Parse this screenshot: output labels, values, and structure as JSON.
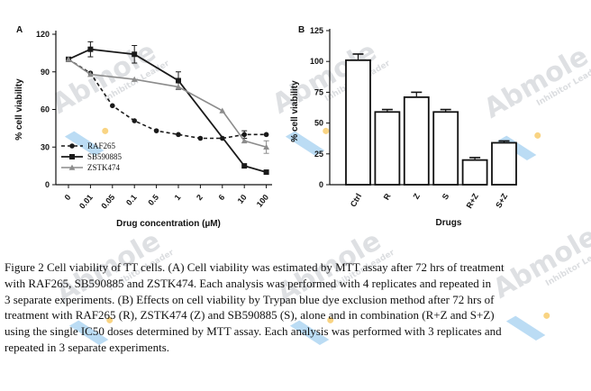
{
  "watermark": {
    "brand": "Abmole",
    "tagline": "Inhibitor Leader"
  },
  "chart_data": [
    {
      "panel_label": "A",
      "type": "line",
      "xlabel": "Drug concentration (µM)",
      "ylabel": "% cell viability",
      "categories": [
        "0",
        "0.01",
        "0.05",
        "0.1",
        "0.5",
        "1",
        "2",
        "6",
        "10",
        "100"
      ],
      "ylim": [
        0,
        120
      ],
      "yticks": [
        0,
        30,
        60,
        90,
        120
      ],
      "series": [
        {
          "name": "RAF265",
          "style": "dashed",
          "marker": "circle",
          "points": [
            [
              0,
              100
            ],
            [
              1,
              89
            ],
            [
              2,
              63
            ],
            [
              3,
              51
            ],
            [
              4,
              43
            ],
            [
              5,
              40
            ],
            [
              6,
              37
            ],
            [
              7,
              37
            ],
            [
              8,
              40
            ],
            [
              9,
              40
            ]
          ],
          "errors": [
            0,
            0,
            0,
            0,
            0,
            0,
            0,
            0,
            3,
            0
          ]
        },
        {
          "name": "SB590885",
          "style": "solid",
          "marker": "square",
          "points": [
            [
              0,
              100
            ],
            [
              1,
              108
            ],
            [
              3,
              104
            ],
            [
              5,
              83
            ],
            [
              8,
              15
            ],
            [
              9,
              10
            ]
          ],
          "errors": [
            0,
            6,
            7,
            7,
            0,
            0
          ]
        },
        {
          "name": "ZSTK474",
          "style": "solid",
          "marker": "triangle",
          "points": [
            [
              0,
              100
            ],
            [
              1,
              88
            ],
            [
              3,
              84
            ],
            [
              5,
              78
            ],
            [
              7,
              59
            ],
            [
              8,
              35
            ],
            [
              9,
              30
            ]
          ],
          "errors": [
            0,
            0,
            0,
            0,
            0,
            0,
            5
          ]
        }
      ]
    },
    {
      "panel_label": "B",
      "type": "bar",
      "xlabel": "Drugs",
      "ylabel": "% cell viability",
      "categories": [
        "Ctrl",
        "R",
        "Z",
        "S",
        "R+Z",
        "S+Z"
      ],
      "values": [
        101,
        59,
        71,
        59,
        20,
        34
      ],
      "errors": [
        5,
        2,
        4,
        2,
        2,
        1.5
      ],
      "ylim": [
        0,
        125
      ],
      "yticks": [
        0,
        25,
        50,
        75,
        100,
        125
      ]
    }
  ],
  "caption": {
    "lines": [
      "Figure 2 Cell viability of TT cells. (A) Cell viability was estimated by MTT assay after 72 hrs of treatment",
      "with RAF265, SB590885 and ZSTK474. Each analysis was performed with 4 replicates and repeated in",
      "3 separate experiments. (B) Effects on cell viability by Trypan blue dye exclusion method after 72 hrs of",
      "treatment with RAF265 (R), ZSTK474 (Z) and SB590885 (S), alone and in combination (R+Z and S+Z)",
      "using the single IC50 doses determined by MTT assay. Each analysis was performed with 3 replicates and",
      "repeated in 3 separate experiments."
    ]
  }
}
